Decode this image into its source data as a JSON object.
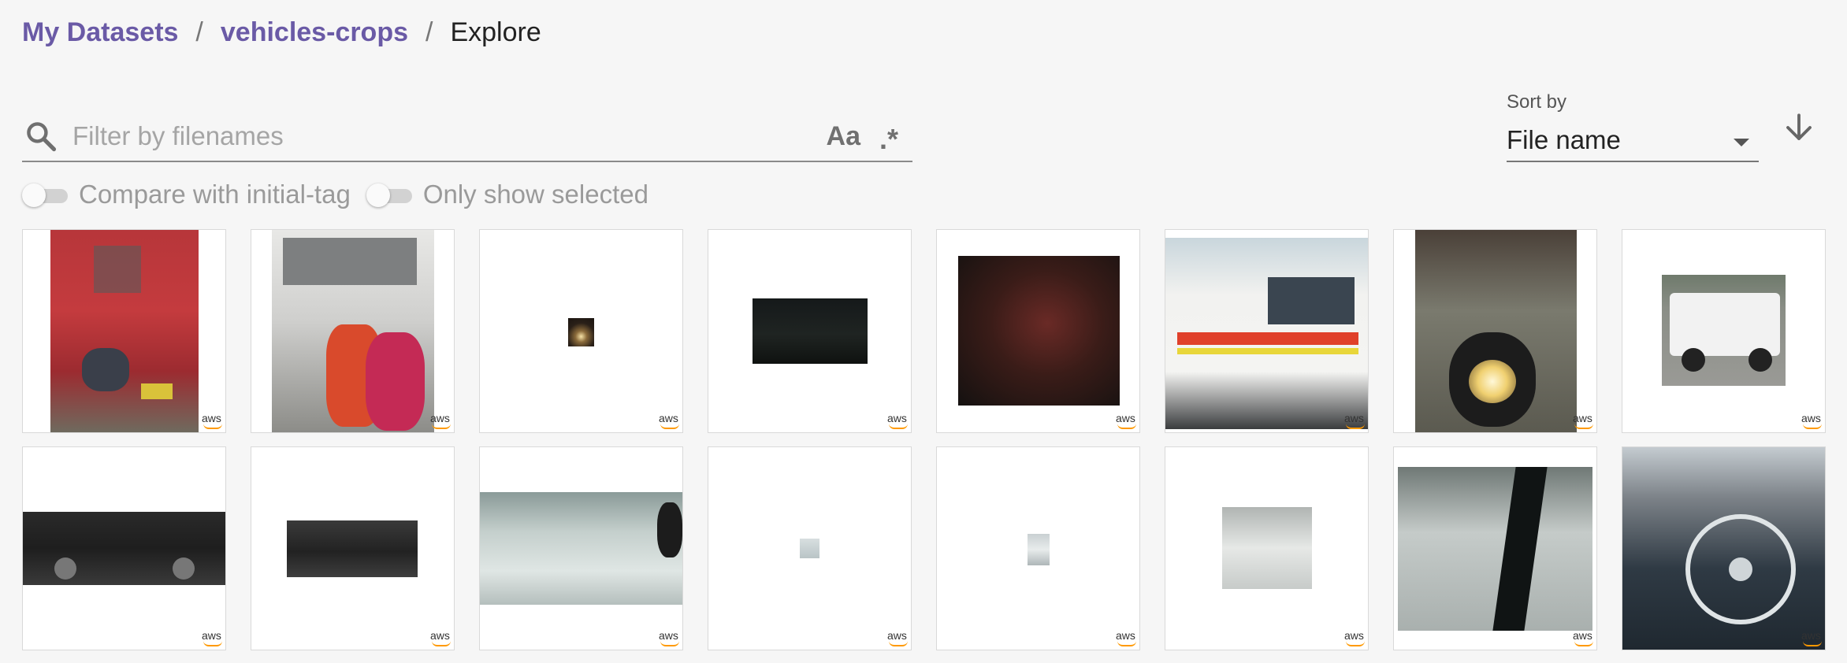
{
  "breadcrumb": {
    "items": [
      "My Datasets",
      "vehicles-crops",
      "Explore"
    ],
    "separator": "/"
  },
  "search": {
    "placeholder": "Filter by filenames",
    "case_label": "Aa",
    "regex_label": ".*"
  },
  "sort": {
    "label": "Sort by",
    "value": "File name",
    "direction": "descending"
  },
  "toggles": {
    "compare_label": "Compare with initial-tag",
    "only_selected_label": "Only show selected"
  },
  "colors": {
    "accent": "#6a5aa6",
    "aws_orange": "#ff9900"
  },
  "watermark": "aws",
  "thumbnails": [
    {
      "subject": "red van with motorcycle helmet"
    },
    {
      "subject": "white van with red motorcycles"
    },
    {
      "subject": "tiny dark car crop with headlights"
    },
    {
      "subject": "dark car at night"
    },
    {
      "subject": "red car at night"
    },
    {
      "subject": "white ambulance"
    },
    {
      "subject": "motorcycle headlight"
    },
    {
      "subject": "white pickup truck"
    },
    {
      "subject": "dark sedan side view"
    },
    {
      "subject": "dark car small crop"
    },
    {
      "subject": "car hood through windshield"
    },
    {
      "subject": "tiny faint car crop"
    },
    {
      "subject": "tiny faint car crop"
    },
    {
      "subject": "faded white car"
    },
    {
      "subject": "car seen through window"
    },
    {
      "subject": "classic car interior steering wheel"
    }
  ]
}
